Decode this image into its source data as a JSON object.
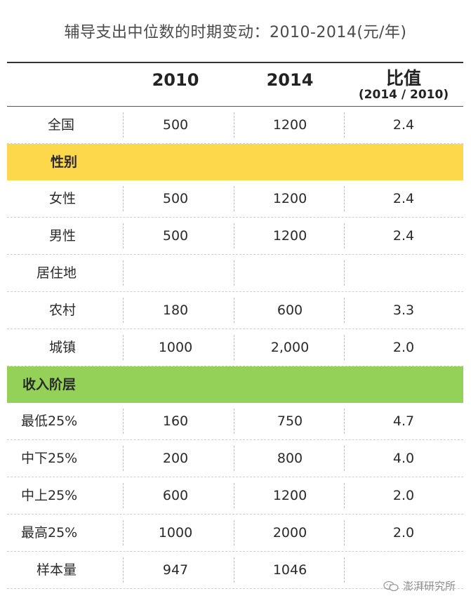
{
  "title": "辅导支出中位数的时期变动：2010-2014(元/年)",
  "watermark": "澎湃研究所",
  "colors": {
    "band_yellow": "#fcd84a",
    "band_green": "#94d159"
  },
  "chart_data": {
    "type": "table",
    "columns": [
      "2010",
      "2014",
      "比值",
      "(2014 / 2010)"
    ],
    "rows": [
      {
        "label": "全国",
        "v2010": "500",
        "v2014": "1200",
        "ratio": "2.4",
        "indent": 58
      },
      {
        "label": "性别",
        "v2010": "",
        "v2014": "",
        "ratio": "",
        "band": "yellow",
        "indent": 62
      },
      {
        "label": "女性",
        "v2010": "500",
        "v2014": "1200",
        "ratio": "2.4",
        "indent": 60
      },
      {
        "label": "男性",
        "v2010": "500",
        "v2014": "1200",
        "ratio": "2.4",
        "indent": 60
      },
      {
        "label": "居住地",
        "v2010": "",
        "v2014": "",
        "ratio": "",
        "indent": 42
      },
      {
        "label": "农村",
        "v2010": "180",
        "v2014": "600",
        "ratio": "3.3",
        "indent": 60
      },
      {
        "label": "城镇",
        "v2010": "1000",
        "v2014": "2,000",
        "ratio": "2.0",
        "indent": 60
      },
      {
        "label": "收入阶层",
        "v2010": "",
        "v2014": "",
        "ratio": "",
        "band": "green",
        "indent": 22
      },
      {
        "label": "最低25%",
        "v2010": "160",
        "v2014": "750",
        "ratio": "4.7",
        "indent": 20
      },
      {
        "label": "中下25%",
        "v2010": "200",
        "v2014": "800",
        "ratio": "4.0",
        "indent": 20
      },
      {
        "label": "中上25%",
        "v2010": "600",
        "v2014": "1200",
        "ratio": "2.0",
        "indent": 20
      },
      {
        "label": "最高25%",
        "v2010": "1000",
        "v2014": "2000",
        "ratio": "2.0",
        "indent": 20
      },
      {
        "label": "样本量",
        "v2010": "947",
        "v2014": "1046",
        "ratio": "",
        "indent": 42
      }
    ]
  }
}
